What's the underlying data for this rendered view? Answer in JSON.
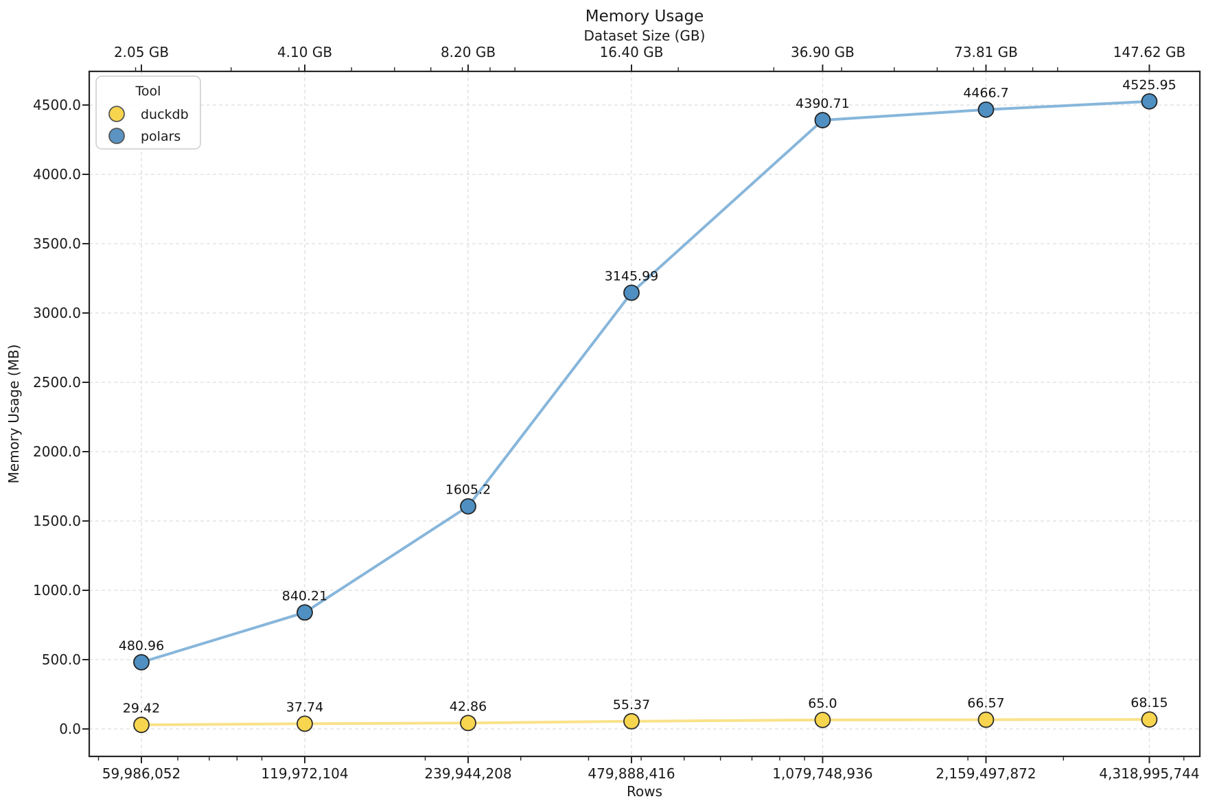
{
  "chart_data": {
    "type": "line",
    "title": "Memory Usage",
    "xlabel": "Rows",
    "ylabel": "Memory Usage (MB)",
    "top_axis_label": "Dataset Size (GB)",
    "x_scale": "log2",
    "grid": true,
    "x_ticks": {
      "row_values": [
        59986052,
        119972104,
        239944208,
        479888416,
        1079748936,
        2159497872,
        4318995744
      ],
      "row_labels": [
        "59,986,052",
        "119,972,104",
        "239,944,208",
        "479,888,416",
        "1,079,748,936",
        "2,159,497,872",
        "4,318,995,744"
      ],
      "gb_labels": [
        "2.05 GB",
        "4.10 GB",
        "8.20 GB",
        "16.40 GB",
        "36.90 GB",
        "73.81 GB",
        "147.62 GB"
      ]
    },
    "y_ticks": {
      "values": [
        0,
        500,
        1000,
        1500,
        2000,
        2500,
        3000,
        3500,
        4000,
        4500
      ],
      "labels": [
        "0.0",
        "500.0",
        "1000.0",
        "1500.0",
        "2000.0",
        "2500.0",
        "3000.0",
        "3500.0",
        "4000.0",
        "4500.0"
      ]
    },
    "legend": {
      "title": "Tool",
      "position": "upper left",
      "entries": [
        {
          "label": "duckdb",
          "color": "#F8D54F"
        },
        {
          "label": "polars",
          "color": "#5B93C3"
        }
      ]
    },
    "series": [
      {
        "name": "duckdb",
        "marker_color": "#F8D54F",
        "line_color": "#F9E289",
        "edge_color": "#2b2b2b",
        "values": [
          29.42,
          37.74,
          42.86,
          55.37,
          65.0,
          66.57,
          68.15
        ],
        "point_labels": [
          "29.42",
          "37.74",
          "42.86",
          "55.37",
          "65.0",
          "66.57",
          "68.15"
        ]
      },
      {
        "name": "polars",
        "marker_color": "#4F8FC1",
        "line_color": "#87B6DB",
        "edge_color": "#222222",
        "values": [
          480.96,
          840.21,
          1605.2,
          3145.99,
          4390.71,
          4466.7,
          4525.95
        ],
        "point_labels": [
          "480.96",
          "840.21",
          "1605.2",
          "3145.99",
          "4390.71",
          "4466.7",
          "4525.95"
        ]
      }
    ],
    "style": {
      "grid_color": "#dddddd",
      "spine_color": "#262626",
      "background": "#ffffff"
    }
  }
}
